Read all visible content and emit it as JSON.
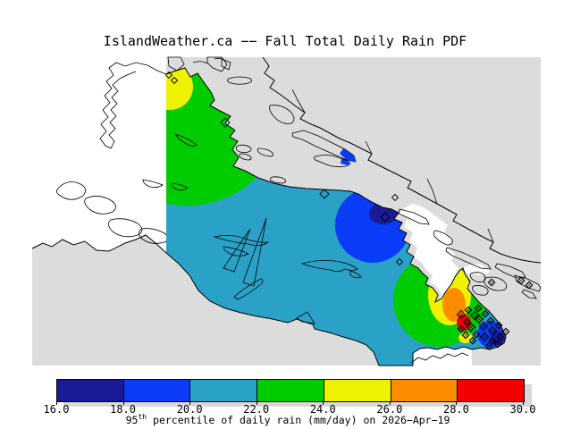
{
  "title": "IslandWeather.ca −− Fall Total Daily Rain PDF",
  "caption": {
    "value_prefix": "95",
    "value_superscript": "th",
    "rest": " percentile of daily rain (mm/day) on 2026−Apr−19"
  },
  "colorbar": {
    "tick_labels": [
      "16.0",
      "18.0",
      "20.0",
      "22.0",
      "24.0",
      "26.0",
      "28.0",
      "30.0"
    ],
    "segments": [
      {
        "range": "16.0-18.0",
        "color": "#1A1A96"
      },
      {
        "range": "18.0-20.0",
        "color": "#0A3CF8"
      },
      {
        "range": "20.0-22.0",
        "color": "#2AA2C8"
      },
      {
        "range": "22.0-24.0",
        "color": "#00CC00"
      },
      {
        "range": "24.0-26.0",
        "color": "#EEF200"
      },
      {
        "range": "26.0-28.0",
        "color": "#FF8C00"
      },
      {
        "range": "28.0-30.0",
        "color": "#F40000"
      }
    ]
  },
  "map": {
    "ocean_color": "#DCDCDC",
    "no_data_color": "#FFFFFF",
    "coastline_color": "#000000"
  },
  "chart_data": {
    "type": "heatmap",
    "title": "IslandWeather.ca −− Fall Total Daily Rain PDF",
    "colorbar_label": "95th percentile of daily rain (mm/day) on 2026−Apr−19",
    "units": "mm/day",
    "scale_min": 16.0,
    "scale_max": 30.0,
    "scale_interval": 2.0,
    "scale_colors": [
      "#1A1A96",
      "#0A3CF8",
      "#2AA2C8",
      "#00CC00",
      "#EEF200",
      "#FF8C00",
      "#F40000"
    ],
    "legend_position": "bottom",
    "regions": [
      {
        "location": "island northwest tip patch",
        "value_range_mm_day": [
          24,
          26
        ]
      },
      {
        "location": "island north",
        "value_range_mm_day": [
          22,
          24
        ]
      },
      {
        "location": "island central, west and south (majority)",
        "value_range_mm_day": [
          20,
          22
        ]
      },
      {
        "location": "mid-island east coast blob",
        "value_range_mm_day": [
          18,
          20
        ]
      },
      {
        "location": "mid-island east coast core",
        "value_range_mm_day": [
          16,
          18
        ]
      },
      {
        "location": "southeast blob outer ring",
        "value_range_mm_day": [
          22,
          24
        ]
      },
      {
        "location": "southeast blob middle ring",
        "value_range_mm_day": [
          24,
          26
        ]
      },
      {
        "location": "southeast blob core",
        "value_range_mm_day": [
          26,
          28
        ]
      },
      {
        "location": "southeast peninsula hot spots",
        "value_range_mm_day": [
          28,
          30
        ]
      },
      {
        "location": "southeast tip and gulf islands",
        "value_range_mm_day": [
          16,
          20
        ]
      }
    ],
    "station_markers": "diamond outlines at stations; dense cross-hatched diamond cluster at the southeast tip"
  }
}
